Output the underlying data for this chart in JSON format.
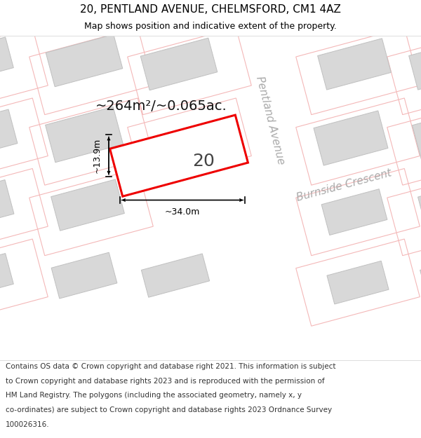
{
  "title": "20, PENTLAND AVENUE, CHELMSFORD, CM1 4AZ",
  "subtitle": "Map shows position and indicative extent of the property.",
  "area_text": "~264m²/~0.065ac.",
  "property_number": "20",
  "dim_width": "~34.0m",
  "dim_height": "~13.9m",
  "street_label1": "Pentland Avenue",
  "street_label2": "Burnside Crescent",
  "footer_lines": [
    "Contains OS data © Crown copyright and database right 2021. This information is subject",
    "to Crown copyright and database rights 2023 and is reproduced with the permission of",
    "HM Land Registry. The polygons (including the associated geometry, namely x, y",
    "co-ordinates) are subject to Crown copyright and database rights 2023 Ordnance Survey",
    "100026316."
  ],
  "map_bg": "#ffffff",
  "plot_outline": "#f4b8b8",
  "building_fill": "#d8d8d8",
  "building_edge": "#c0c0c0",
  "highlight_fill": "#ffffff",
  "highlight_edge": "#ee0000",
  "dim_color": "#000000",
  "street_label_color": "#aaaaaa",
  "title_fontsize": 11,
  "subtitle_fontsize": 9,
  "footer_fontsize": 7.5,
  "area_fontsize": 14,
  "number_fontsize": 18,
  "dim_fontsize": 9,
  "street_fontsize": 11
}
